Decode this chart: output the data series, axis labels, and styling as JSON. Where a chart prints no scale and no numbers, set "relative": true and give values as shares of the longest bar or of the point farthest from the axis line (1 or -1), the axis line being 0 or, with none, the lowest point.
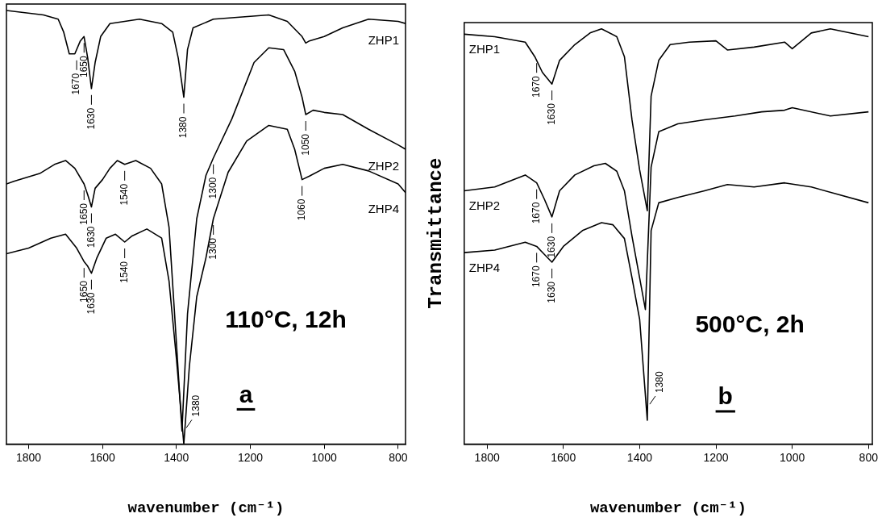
{
  "chart_data": [
    {
      "type": "line",
      "relative": true,
      "xlabel": "wavenumber (cm⁻¹)",
      "xlim": [
        1860,
        780
      ],
      "xticks": [
        1800,
        1600,
        1400,
        1200,
        1000,
        800
      ],
      "grid": false,
      "legend": false,
      "marker": "none",
      "line_style": "solid",
      "series": [
        {
          "name": "ZHP1",
          "color": "#000000",
          "x": [
            1860,
            1760,
            1720,
            1705,
            1690,
            1675,
            1660,
            1650,
            1640,
            1630,
            1620,
            1605,
            1580,
            1500,
            1440,
            1410,
            1395,
            1380,
            1370,
            1355,
            1300,
            1150,
            1100,
            1060,
            1050,
            1040,
            1000,
            950,
            880,
            800,
            780
          ],
          "values": [
            1.0,
            0.99,
            0.98,
            0.95,
            0.9,
            0.9,
            0.93,
            0.94,
            0.89,
            0.82,
            0.88,
            0.94,
            0.97,
            0.98,
            0.97,
            0.95,
            0.89,
            0.8,
            0.91,
            0.96,
            0.98,
            0.99,
            0.975,
            0.94,
            0.925,
            0.93,
            0.94,
            0.96,
            0.98,
            0.975,
            0.97
          ]
        },
        {
          "name": "ZHP2",
          "color": "#000000",
          "x": [
            1860,
            1840,
            1770,
            1730,
            1700,
            1675,
            1650,
            1640,
            1630,
            1620,
            1600,
            1580,
            1560,
            1540,
            1510,
            1470,
            1440,
            1420,
            1405,
            1385,
            1370,
            1345,
            1320,
            1300,
            1250,
            1190,
            1150,
            1110,
            1080,
            1060,
            1050,
            1030,
            1000,
            950,
            880,
            800,
            780
          ],
          "values": [
            0.6,
            0.606,
            0.624,
            0.645,
            0.654,
            0.636,
            0.6,
            0.575,
            0.547,
            0.59,
            0.61,
            0.636,
            0.654,
            0.645,
            0.654,
            0.636,
            0.6,
            0.5,
            0.3,
            0.03,
            0.3,
            0.52,
            0.62,
            0.66,
            0.75,
            0.88,
            0.914,
            0.91,
            0.86,
            0.8,
            0.76,
            0.77,
            0.765,
            0.76,
            0.726,
            0.69,
            0.68
          ]
        },
        {
          "name": "ZHP4",
          "color": "#000000",
          "x": [
            1860,
            1800,
            1740,
            1700,
            1670,
            1650,
            1640,
            1630,
            1615,
            1590,
            1565,
            1540,
            1520,
            1480,
            1440,
            1420,
            1400,
            1380,
            1365,
            1345,
            1320,
            1300,
            1260,
            1210,
            1150,
            1100,
            1080,
            1060,
            1040,
            1000,
            950,
            880,
            800,
            780
          ],
          "values": [
            0.439,
            0.452,
            0.475,
            0.484,
            0.452,
            0.421,
            0.41,
            0.394,
            0.43,
            0.475,
            0.484,
            0.466,
            0.48,
            0.496,
            0.475,
            0.376,
            0.197,
            0.0,
            0.179,
            0.34,
            0.43,
            0.52,
            0.627,
            0.699,
            0.735,
            0.726,
            0.68,
            0.61,
            0.618,
            0.636,
            0.645,
            0.63,
            0.6,
            0.58
          ]
        }
      ],
      "annotations": [
        {
          "text": "1670",
          "x": 1670,
          "y": 0.9
        },
        {
          "text": "1650",
          "x": 1650,
          "y": 0.94
        },
        {
          "text": "1630",
          "x": 1630,
          "y": 0.82
        },
        {
          "text": "1380",
          "x": 1380,
          "y": 0.8
        },
        {
          "text": "1050",
          "x": 1050,
          "y": 0.76
        },
        {
          "text": "1650",
          "x": 1650,
          "y": 0.6
        },
        {
          "text": "1630",
          "x": 1630,
          "y": 0.547
        },
        {
          "text": "1540",
          "x": 1540,
          "y": 0.645
        },
        {
          "text": "1300",
          "x": 1300,
          "y": 0.66
        },
        {
          "text": "1060",
          "x": 1060,
          "y": 0.61
        },
        {
          "text": "1650",
          "x": 1650,
          "y": 0.421
        },
        {
          "text": "1630",
          "x": 1630,
          "y": 0.394
        },
        {
          "text": "1540",
          "x": 1540,
          "y": 0.466
        },
        {
          "text": "1300",
          "x": 1300,
          "y": 0.52
        },
        {
          "text": "1380",
          "x": 1380,
          "y": 0.0
        },
        "110°C, 12h",
        "a"
      ]
    },
    {
      "type": "line",
      "relative": true,
      "xlabel": "wavenumber (cm⁻¹)",
      "ylabel": "Transmittance",
      "xlim": [
        1860,
        790
      ],
      "xticks": [
        1800,
        1600,
        1400,
        1200,
        1000,
        800
      ],
      "grid": false,
      "legend": false,
      "marker": "none",
      "line_style": "solid",
      "series": [
        {
          "name": "ZHP1",
          "color": "#000000",
          "x": [
            1860,
            1780,
            1700,
            1675,
            1655,
            1630,
            1610,
            1570,
            1530,
            1500,
            1460,
            1440,
            1420,
            1400,
            1380,
            1370,
            1350,
            1320,
            1270,
            1200,
            1170,
            1100,
            1020,
            1000,
            950,
            900,
            800
          ],
          "values": [
            0.987,
            0.981,
            0.968,
            0.933,
            0.895,
            0.867,
            0.924,
            0.962,
            0.99,
            1.0,
            0.981,
            0.933,
            0.78,
            0.66,
            0.562,
            0.838,
            0.924,
            0.962,
            0.968,
            0.971,
            0.949,
            0.956,
            0.968,
            0.952,
            0.99,
            1.0,
            0.981
          ]
        },
        {
          "name": "ZHP2",
          "color": "#000000",
          "x": [
            1860,
            1780,
            1700,
            1670,
            1650,
            1630,
            1610,
            1570,
            1520,
            1490,
            1460,
            1440,
            1420,
            1400,
            1385,
            1370,
            1350,
            1300,
            1230,
            1150,
            1080,
            1020,
            1000,
            900,
            800
          ],
          "values": [
            0.61,
            0.619,
            0.648,
            0.629,
            0.59,
            0.547,
            0.61,
            0.648,
            0.67,
            0.676,
            0.657,
            0.61,
            0.5,
            0.4,
            0.324,
            0.667,
            0.752,
            0.771,
            0.781,
            0.79,
            0.8,
            0.804,
            0.81,
            0.79,
            0.8
          ]
        },
        {
          "name": "ZHP4",
          "color": "#000000",
          "x": [
            1860,
            1780,
            1700,
            1670,
            1650,
            1630,
            1600,
            1550,
            1500,
            1470,
            1440,
            1420,
            1400,
            1380,
            1370,
            1350,
            1300,
            1230,
            1170,
            1100,
            1020,
            950,
            800
          ],
          "values": [
            0.461,
            0.467,
            0.486,
            0.476,
            0.457,
            0.438,
            0.476,
            0.514,
            0.533,
            0.528,
            0.495,
            0.4,
            0.3,
            0.057,
            0.514,
            0.581,
            0.594,
            0.61,
            0.625,
            0.619,
            0.629,
            0.619,
            0.581
          ]
        }
      ],
      "annotations": [
        {
          "text": "1670",
          "x": 1670,
          "y": 0.933
        },
        {
          "text": "1630",
          "x": 1630,
          "y": 0.867
        },
        {
          "text": "1670",
          "x": 1670,
          "y": 0.629
        },
        {
          "text": "1630",
          "x": 1630,
          "y": 0.547
        },
        {
          "text": "1670",
          "x": 1670,
          "y": 0.476
        },
        {
          "text": "1630",
          "x": 1630,
          "y": 0.438
        },
        {
          "text": "1380",
          "x": 1380,
          "y": 0.057
        },
        "500°C, 2h",
        "b"
      ]
    }
  ]
}
